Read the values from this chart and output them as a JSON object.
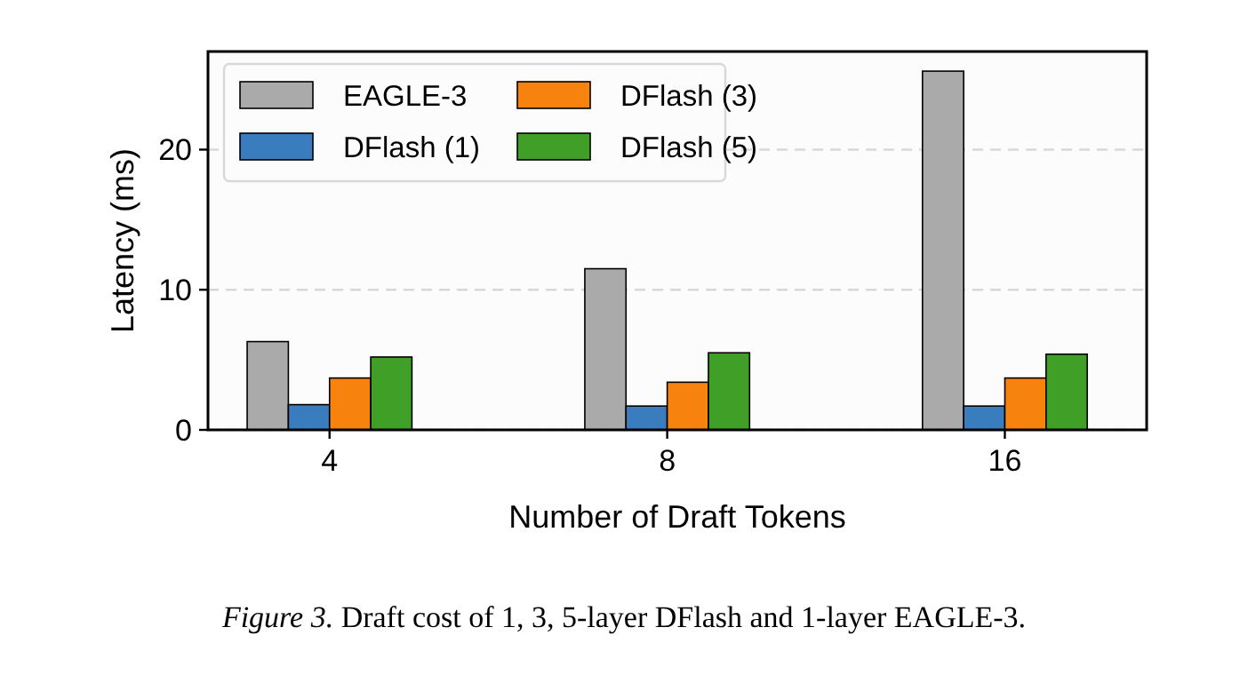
{
  "chart_data": {
    "type": "bar",
    "xlabel": "Number of Draft Tokens",
    "ylabel": "Latency (ms)",
    "categories": [
      "4",
      "8",
      "16"
    ],
    "series": [
      {
        "name": "EAGLE-3",
        "color": "#aaaaaa",
        "values": [
          6.3,
          11.5,
          25.6
        ]
      },
      {
        "name": "DFlash (1)",
        "color": "#3a7dbf",
        "values": [
          1.8,
          1.7,
          1.7
        ]
      },
      {
        "name": "DFlash (3)",
        "color": "#f7820e",
        "values": [
          3.7,
          3.4,
          3.7
        ]
      },
      {
        "name": "DFlash (5)",
        "color": "#3f9f26",
        "values": [
          5.2,
          5.5,
          5.4
        ]
      }
    ],
    "ylim": [
      0,
      27
    ],
    "yticks": [
      0,
      10,
      20
    ],
    "grid": "y",
    "legend": "top left",
    "annotations": [
      "Figure 3. Draft cost of 1, 3, 5-layer DFlash and 1-layer EAGLE-3."
    ]
  }
}
